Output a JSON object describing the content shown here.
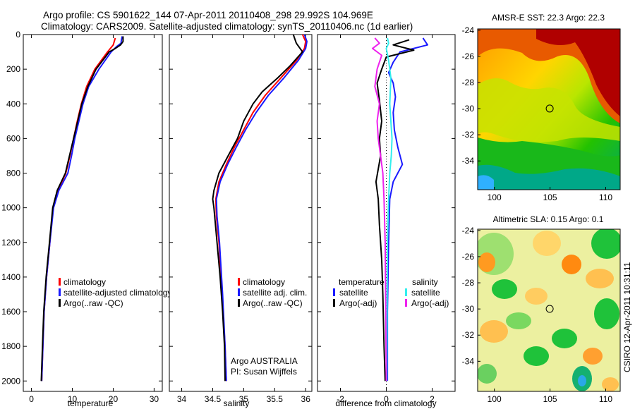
{
  "header": {
    "line1": "Argo profile: CS 5901622_144 07-Apr-2011 20110408_298 29.992S 104.969E",
    "line2": "Climatology: CARS2009. Satellite-adjusted climatology: synTS_20110406.nc (1d earlier)"
  },
  "credit": "CSIRO 12-Apr-2011 10:31:11",
  "colors": {
    "climatology": "#ff0000",
    "satellite": "#1a1aff",
    "argo": "#000000",
    "cyan": "#33eeee",
    "magenta": "#ee22ee"
  },
  "chart_data": [
    {
      "type": "line",
      "title": "",
      "xlabel": "temperature",
      "ylabel": "",
      "xlim": [
        -2,
        32
      ],
      "ylim": [
        2060,
        0
      ],
      "xticks": [
        "0",
        "10",
        "20",
        "30"
      ],
      "yticks": [
        "0",
        "200",
        "400",
        "600",
        "800",
        "1000",
        "1200",
        "1400",
        "1600",
        "1800",
        "2000"
      ],
      "legend": [
        "climatology",
        "satellite-adjusted climatology",
        "Argo(..raw -QC)"
      ],
      "annotations": [],
      "series": [
        {
          "name": "climatology",
          "color": "#ff0000",
          "points": [
            [
              20.5,
              20
            ],
            [
              20,
              60
            ],
            [
              18.6,
              100
            ],
            [
              15.5,
              200
            ],
            [
              13.5,
              300
            ],
            [
              12.2,
              400
            ],
            [
              11.2,
              500
            ],
            [
              10.3,
              600
            ],
            [
              9.4,
              700
            ],
            [
              8.4,
              800
            ],
            [
              6.5,
              900
            ],
            [
              5.3,
              1000
            ],
            [
              4.5,
              1200
            ],
            [
              3.7,
              1400
            ],
            [
              3.1,
              1600
            ],
            [
              2.8,
              1800
            ],
            [
              2.5,
              2000
            ]
          ]
        },
        {
          "name": "satellite-adjusted climatology",
          "color": "#1a1aff",
          "points": [
            [
              22.2,
              10
            ],
            [
              22,
              30
            ],
            [
              21.9,
              50
            ],
            [
              20.8,
              70
            ],
            [
              19.5,
              100
            ],
            [
              16.5,
              200
            ],
            [
              14,
              300
            ],
            [
              12.6,
              400
            ],
            [
              11.6,
              500
            ],
            [
              10.6,
              600
            ],
            [
              9.8,
              700
            ],
            [
              8.9,
              800
            ],
            [
              6.7,
              900
            ],
            [
              5.4,
              1000
            ],
            [
              4.5,
              1200
            ],
            [
              3.7,
              1400
            ],
            [
              3.1,
              1600
            ],
            [
              2.8,
              1800
            ],
            [
              2.5,
              2000
            ]
          ]
        },
        {
          "name": "Argo(..raw -QC)",
          "color": "#000000",
          "points": [
            [
              22.4,
              10
            ],
            [
              22.4,
              40
            ],
            [
              21.8,
              60
            ],
            [
              20.5,
              80
            ],
            [
              19,
              100
            ],
            [
              15.8,
              200
            ],
            [
              13.8,
              300
            ],
            [
              12.3,
              400
            ],
            [
              11.3,
              500
            ],
            [
              10.3,
              600
            ],
            [
              9.3,
              700
            ],
            [
              8.3,
              800
            ],
            [
              6.3,
              900
            ],
            [
              5.2,
              1000
            ],
            [
              4.4,
              1200
            ],
            [
              3.6,
              1400
            ],
            [
              3,
              1600
            ],
            [
              2.7,
              1800
            ],
            [
              2.4,
              2000
            ]
          ]
        }
      ]
    },
    {
      "type": "line",
      "title": "",
      "xlabel": "salinity",
      "ylabel": "",
      "xlim": [
        33.8,
        36.1
      ],
      "ylim": [
        2060,
        0
      ],
      "xticks": [
        "34",
        "34.5",
        "35",
        "35.5",
        "36"
      ],
      "legend": [
        "climatology",
        "satellite adj. clim.",
        "Argo(..raw -QC)"
      ],
      "annotations": [
        "Argo AUSTRALIA",
        "PI: Susan Wijffels"
      ],
      "series": [
        {
          "name": "climatology",
          "color": "#ff0000",
          "points": [
            [
              35.95,
              0
            ],
            [
              36.0,
              40
            ],
            [
              35.98,
              80
            ],
            [
              35.85,
              150
            ],
            [
              35.6,
              250
            ],
            [
              35.35,
              350
            ],
            [
              35.15,
              450
            ],
            [
              35.0,
              550
            ],
            [
              34.85,
              650
            ],
            [
              34.72,
              750
            ],
            [
              34.6,
              850
            ],
            [
              34.55,
              950
            ],
            [
              34.56,
              1050
            ],
            [
              34.6,
              1200
            ],
            [
              34.65,
              1500
            ],
            [
              34.7,
              1800
            ],
            [
              34.72,
              2000
            ]
          ]
        },
        {
          "name": "satellite adj. clim.",
          "color": "#1a1aff",
          "points": [
            [
              35.98,
              0
            ],
            [
              36.02,
              40
            ],
            [
              36.0,
              80
            ],
            [
              35.88,
              150
            ],
            [
              35.65,
              250
            ],
            [
              35.4,
              350
            ],
            [
              35.2,
              450
            ],
            [
              35.03,
              550
            ],
            [
              34.88,
              650
            ],
            [
              34.74,
              750
            ],
            [
              34.62,
              850
            ],
            [
              34.56,
              950
            ],
            [
              34.57,
              1050
            ],
            [
              34.61,
              1200
            ],
            [
              34.66,
              1500
            ],
            [
              34.7,
              1800
            ],
            [
              34.72,
              2000
            ]
          ]
        },
        {
          "name": "Argo(..raw -QC)",
          "color": "#000000",
          "points": [
            [
              35.8,
              0
            ],
            [
              35.85,
              50
            ],
            [
              35.95,
              100
            ],
            [
              35.75,
              180
            ],
            [
              35.55,
              250
            ],
            [
              35.3,
              330
            ],
            [
              35.15,
              400
            ],
            [
              35.0,
              500
            ],
            [
              34.9,
              600
            ],
            [
              34.75,
              700
            ],
            [
              34.6,
              800
            ],
            [
              34.52,
              900
            ],
            [
              34.5,
              950
            ],
            [
              34.52,
              1000
            ],
            [
              34.57,
              1200
            ],
            [
              34.62,
              1400
            ],
            [
              34.66,
              1600
            ],
            [
              34.69,
              1800
            ],
            [
              34.7,
              2000
            ]
          ]
        }
      ]
    },
    {
      "type": "line",
      "title": "",
      "xlabel": "difference from climatology",
      "ylabel": "",
      "xlim": [
        -3,
        3
      ],
      "ylim": [
        2060,
        0
      ],
      "xticks": [
        "-2",
        "0",
        "2"
      ],
      "legend_temperature_title": "temperature",
      "legend_salinity_title": "salinity",
      "legend_temperature": [
        "satellite",
        "Argo(-adj)"
      ],
      "legend_salinity": [
        "satellite",
        "Argo(-adj)"
      ],
      "annotations": [],
      "series": [
        {
          "name": "temperature satellite",
          "color": "#1a1aff",
          "points": [
            [
              1.6,
              20
            ],
            [
              1.8,
              60
            ],
            [
              0.6,
              100
            ],
            [
              0.3,
              160
            ],
            [
              0.1,
              220
            ],
            [
              0.3,
              280
            ],
            [
              0.4,
              360
            ],
            [
              0.3,
              450
            ],
            [
              0.35,
              550
            ],
            [
              0.5,
              650
            ],
            [
              0.7,
              750
            ],
            [
              0.3,
              850
            ],
            [
              0.15,
              950
            ],
            [
              0.1,
              1200
            ],
            [
              0.05,
              1600
            ],
            [
              0.05,
              2000
            ]
          ]
        },
        {
          "name": "temperature Argo(-adj)",
          "color": "#000000",
          "points": [
            [
              1.0,
              30
            ],
            [
              0.3,
              60
            ],
            [
              1.2,
              90
            ],
            [
              0,
              130
            ],
            [
              -0.2,
              200
            ],
            [
              -0.4,
              280
            ],
            [
              -0.3,
              380
            ],
            [
              -0.2,
              500
            ],
            [
              -0.3,
              600
            ],
            [
              -0.25,
              700
            ],
            [
              -0.45,
              850
            ],
            [
              -0.35,
              950
            ],
            [
              -0.3,
              1100
            ],
            [
              -0.2,
              1300
            ],
            [
              -0.15,
              1500
            ],
            [
              -0.1,
              1800
            ],
            [
              -0.05,
              2000
            ]
          ]
        },
        {
          "name": "salinity satellite",
          "color": "#33eeee",
          "points": [
            [
              0.05,
              20
            ],
            [
              0.1,
              50
            ],
            [
              0.0,
              80
            ],
            [
              0.1,
              150
            ],
            [
              0.2,
              250
            ],
            [
              0.15,
              400
            ],
            [
              0.2,
              500
            ],
            [
              0.25,
              600
            ],
            [
              0.22,
              700
            ],
            [
              0.15,
              800
            ],
            [
              0.1,
              950
            ],
            [
              0.05,
              1200
            ],
            [
              0.02,
              2000
            ]
          ]
        },
        {
          "name": "salinity Argo(-adj)",
          "color": "#ee22ee",
          "points": [
            [
              -0.5,
              20
            ],
            [
              -0.3,
              50
            ],
            [
              -0.6,
              80
            ],
            [
              -0.2,
              120
            ],
            [
              -0.4,
              200
            ],
            [
              -0.5,
              300
            ],
            [
              -0.3,
              400
            ],
            [
              -0.4,
              500
            ],
            [
              -0.35,
              600
            ],
            [
              -0.25,
              700
            ],
            [
              -0.15,
              800
            ],
            [
              -0.1,
              950
            ],
            [
              -0.05,
              1200
            ],
            [
              0,
              2000
            ]
          ]
        }
      ]
    }
  ],
  "maps": [
    {
      "title": "AMSR-E SST: 22.3 Argo: 22.3",
      "lon_ticks": [
        "100",
        "105",
        "110"
      ],
      "lat_ticks": [
        "-24",
        "-26",
        "-28",
        "-30",
        "-32",
        "-34"
      ],
      "marker": [
        104.969,
        -29.992
      ]
    },
    {
      "title": "Altimetric SLA: 0.15 Argo: 0.1",
      "lon_ticks": [
        "100",
        "105",
        "110"
      ],
      "lat_ticks": [
        "-24",
        "-26",
        "-28",
        "-30",
        "-32",
        "-34"
      ],
      "marker": [
        104.969,
        -29.992
      ]
    }
  ]
}
